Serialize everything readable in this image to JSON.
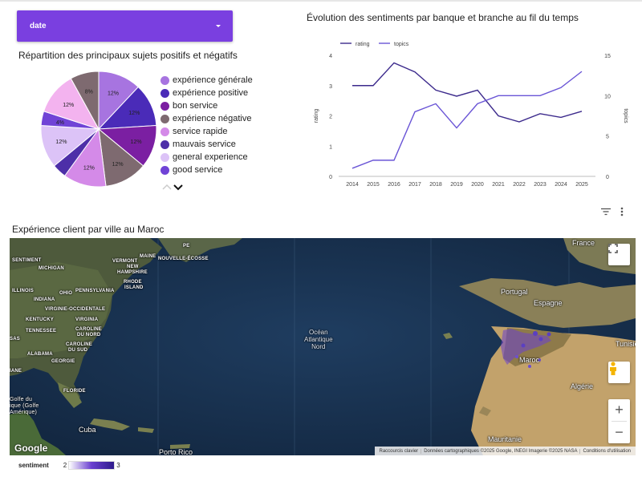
{
  "dropdown": {
    "label": "date"
  },
  "pie_title": "Répartition des principaux sujets positifs et négatifs",
  "line_title": "Évolution des sentiments par banque et branche au fil du temps",
  "map_title": "Expérience client par ville au Maroc",
  "pie_legend": [
    {
      "label": "expérience générale",
      "color": "#a774e0"
    },
    {
      "label": "expérience positive",
      "color": "#4a2bb8"
    },
    {
      "label": "bon service",
      "color": "#7b1fa2"
    },
    {
      "label": "expérience négative",
      "color": "#7e6a70"
    },
    {
      "label": "service rapide",
      "color": "#d48ae8"
    },
    {
      "label": "mauvais service",
      "color": "#4d2fa8"
    },
    {
      "label": "general experience",
      "color": "#dcc3f7"
    },
    {
      "label": "good service",
      "color": "#7043d6"
    }
  ],
  "chart_data": [
    {
      "type": "pie",
      "title": "Répartition des principaux sujets positifs et négatifs",
      "slices": [
        {
          "label": "expérience générale",
          "value": 12,
          "color": "#a774e0",
          "text": "12%"
        },
        {
          "label": "expérience positive",
          "value": 12,
          "color": "#4a2bb8",
          "text": "12%"
        },
        {
          "label": "bon service",
          "value": 12,
          "color": "#7b1fa2",
          "text": "12%"
        },
        {
          "label": "expérience négative",
          "value": 12,
          "color": "#7e6a70",
          "text": "12%"
        },
        {
          "label": "service rapide",
          "value": 12,
          "color": "#d48ae8",
          "text": "12%"
        },
        {
          "label": "mauvais service",
          "value": 4,
          "color": "#4d2fa8",
          "text": ""
        },
        {
          "label": "general experience",
          "value": 12,
          "color": "#dcc3f7",
          "text": "12%"
        },
        {
          "label": "good service",
          "value": 4,
          "color": "#7043d6",
          "text": "4%"
        },
        {
          "label": "",
          "value": 12,
          "color": "#f3b3ef",
          "text": "12%"
        },
        {
          "label": "",
          "value": 8,
          "color": "#7e6a70",
          "text": "8%"
        }
      ]
    },
    {
      "type": "line",
      "title": "Évolution des sentiments par banque et branche au fil du temps",
      "x": [
        2014,
        2015,
        2016,
        2017,
        2018,
        2019,
        2020,
        2021,
        2022,
        2023,
        2024,
        2025
      ],
      "series": [
        {
          "name": "rating",
          "axis": "left",
          "color": "#3c2a8c",
          "values": [
            3.0,
            3.0,
            3.75,
            3.45,
            2.85,
            2.65,
            2.85,
            2.0,
            1.8,
            2.07,
            1.95,
            2.15
          ]
        },
        {
          "name": "topics",
          "axis": "right",
          "color": "#6a55d6",
          "values": [
            1,
            2,
            2,
            8,
            9,
            6,
            9,
            10,
            10,
            10,
            11,
            13
          ]
        }
      ],
      "ylabel": "rating",
      "y2label": "topics",
      "ylim": [
        0,
        4
      ],
      "y2lim": [
        0,
        15
      ],
      "yticks": [
        0,
        1,
        2,
        3,
        4
      ],
      "y2ticks": [
        0,
        5,
        10,
        15
      ],
      "legend_position": "top-left"
    }
  ],
  "map": {
    "state_labels": [
      "SENTIMENT",
      "MICHIGAN",
      "VERMONT",
      "MAINE",
      "NOUVELLE-ÉCOSSE",
      "NEW",
      "HAMPSHIRE",
      "RHODE",
      "ISLAND",
      "ILLINOIS",
      "OHIO",
      "PENNSYLVANIA",
      "INDIANA",
      "VIRGINIE-OCCIDENTALE",
      "KENTUCKY",
      "VIRGINIA",
      "TENNESSEE",
      "CAROLINE",
      "DU NORD",
      "CAROLINE",
      "DU SUD",
      "ALABAMA",
      "GEORGIE",
      "FLORIDE",
      "SAS",
      "IANE",
      "PE"
    ],
    "country_labels": [
      "Portugal",
      "Espagne",
      "Maroc",
      "Algérie",
      "Mauritanie",
      "Tunisie",
      "France",
      "Cuba",
      "Porto Rico",
      "Golfe du",
      "ique (Golfe",
      "Amérique)"
    ],
    "ocean_label": [
      "Océan",
      "Atlantique",
      "Nord"
    ],
    "google": "Google",
    "attribution": [
      "Raccourcis clavier",
      "Données cartographiques ©2025 Google, INEGI Imagerie ©2025 NASA",
      "Conditions d'utilisation"
    ],
    "legend_title": "sentiment",
    "legend_min": "2",
    "legend_max": "3"
  }
}
